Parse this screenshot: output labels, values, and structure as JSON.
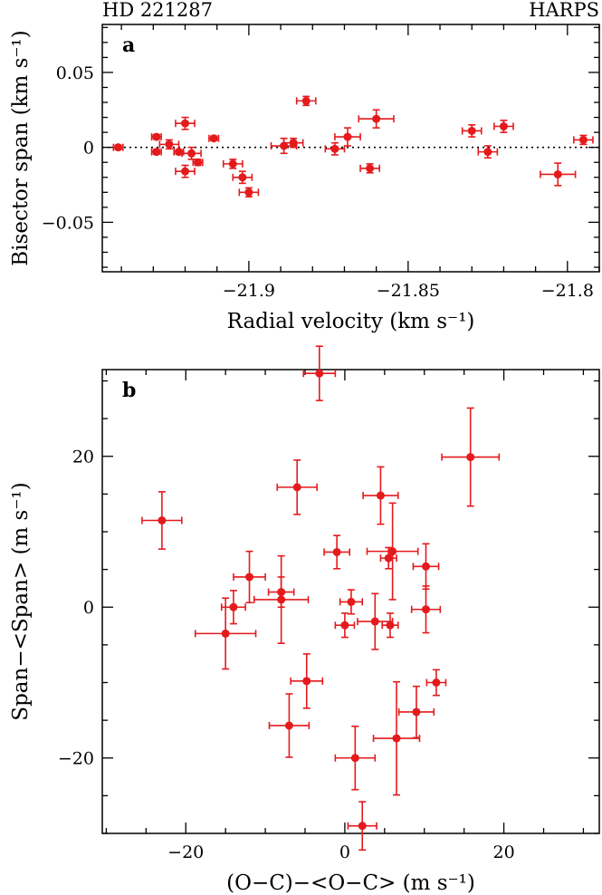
{
  "header": {
    "left": "HD 221287",
    "right": "HARPS"
  },
  "colors": {
    "data": "#e41a1c",
    "axis": "#000000"
  },
  "chart_data": [
    {
      "type": "scatter",
      "panel_label": "a",
      "xlabel": "Radial velocity (km s⁻¹)",
      "ylabel": "Bisector span (km s⁻¹)",
      "xlim": [
        -21.946,
        -21.79
      ],
      "ylim": [
        -0.083,
        0.082
      ],
      "xticks": [
        -21.9,
        -21.85,
        -21.8
      ],
      "xtick_labels": [
        "−21.9",
        "−21.85",
        "−21.8"
      ],
      "yticks": [
        -0.05,
        0,
        0.05
      ],
      "ytick_labels": [
        "−0.05",
        "0",
        "0.05"
      ],
      "reference_line": {
        "y": 0,
        "style": "dotted"
      },
      "points": [
        {
          "x": -21.941,
          "y": 0.0,
          "xerr": 0.0015,
          "yerr": 0.0015
        },
        {
          "x": -21.929,
          "y": 0.007,
          "xerr": 0.0015,
          "yerr": 0.0015
        },
        {
          "x": -21.929,
          "y": -0.003,
          "xerr": 0.0015,
          "yerr": 0.0015
        },
        {
          "x": -21.925,
          "y": 0.002,
          "xerr": 0.003,
          "yerr": 0.003
        },
        {
          "x": -21.922,
          "y": -0.003,
          "xerr": 0.0015,
          "yerr": 0.0015
        },
        {
          "x": -21.92,
          "y": 0.016,
          "xerr": 0.003,
          "yerr": 0.004
        },
        {
          "x": -21.92,
          "y": -0.016,
          "xerr": 0.003,
          "yerr": 0.004
        },
        {
          "x": -21.918,
          "y": -0.004,
          "xerr": 0.003,
          "yerr": 0.004
        },
        {
          "x": -21.916,
          "y": -0.01,
          "xerr": 0.0015,
          "yerr": 0.002
        },
        {
          "x": -21.911,
          "y": 0.006,
          "xerr": 0.0015,
          "yerr": 0.0015
        },
        {
          "x": -21.905,
          "y": -0.011,
          "xerr": 0.003,
          "yerr": 0.003
        },
        {
          "x": -21.902,
          "y": -0.02,
          "xerr": 0.003,
          "yerr": 0.004
        },
        {
          "x": -21.9,
          "y": -0.03,
          "xerr": 0.003,
          "yerr": 0.003
        },
        {
          "x": -21.889,
          "y": 0.001,
          "xerr": 0.004,
          "yerr": 0.005
        },
        {
          "x": -21.886,
          "y": 0.003,
          "xerr": 0.003,
          "yerr": 0.003
        },
        {
          "x": -21.882,
          "y": 0.031,
          "xerr": 0.003,
          "yerr": 0.003
        },
        {
          "x": -21.873,
          "y": -0.001,
          "xerr": 0.003,
          "yerr": 0.004
        },
        {
          "x": -21.869,
          "y": 0.007,
          "xerr": 0.004,
          "yerr": 0.006
        },
        {
          "x": -21.862,
          "y": -0.014,
          "xerr": 0.003,
          "yerr": 0.003
        },
        {
          "x": -21.86,
          "y": 0.019,
          "xerr": 0.0055,
          "yerr": 0.006
        },
        {
          "x": -21.83,
          "y": 0.011,
          "xerr": 0.003,
          "yerr": 0.004
        },
        {
          "x": -21.825,
          "y": -0.003,
          "xerr": 0.003,
          "yerr": 0.004
        },
        {
          "x": -21.82,
          "y": 0.014,
          "xerr": 0.003,
          "yerr": 0.004
        },
        {
          "x": -21.803,
          "y": -0.018,
          "xerr": 0.0055,
          "yerr": 0.0075
        },
        {
          "x": -21.795,
          "y": 0.005,
          "xerr": 0.003,
          "yerr": 0.003
        }
      ]
    },
    {
      "type": "scatter",
      "panel_label": "b",
      "xlabel": "(O−C)−<O−C> (m s⁻¹)",
      "ylabel": "Span−<Span> (m s⁻¹)",
      "xlim": [
        -30.5,
        32
      ],
      "ylim": [
        -30,
        31.5
      ],
      "xticks": [
        -20,
        0,
        20
      ],
      "xtick_labels": [
        "−20",
        "0",
        "20"
      ],
      "yticks": [
        -20,
        0,
        20
      ],
      "ytick_labels": [
        "−20",
        "0",
        "20"
      ],
      "points": [
        {
          "x": -23.0,
          "y": 11.5,
          "xerr": 2.5,
          "yerr": 3.8
        },
        {
          "x": -15.0,
          "y": -3.5,
          "xerr": 3.8,
          "yerr": 4.7
        },
        {
          "x": -14.0,
          "y": 0.0,
          "xerr": 1.5,
          "yerr": 2.2
        },
        {
          "x": -12.0,
          "y": 4.0,
          "xerr": 2.0,
          "yerr": 3.4
        },
        {
          "x": -8.0,
          "y": 1.0,
          "xerr": 3.4,
          "yerr": 5.8
        },
        {
          "x": -8.0,
          "y": 2.0,
          "xerr": 1.6,
          "yerr": 2.0
        },
        {
          "x": -7.0,
          "y": -15.7,
          "xerr": 2.5,
          "yerr": 4.2
        },
        {
          "x": -6.0,
          "y": 15.9,
          "xerr": 2.5,
          "yerr": 3.6
        },
        {
          "x": -4.8,
          "y": -9.8,
          "xerr": 2.0,
          "yerr": 3.6
        },
        {
          "x": -3.2,
          "y": 31.0,
          "xerr": 2.0,
          "yerr": 3.6
        },
        {
          "x": -1.0,
          "y": 7.3,
          "xerr": 1.6,
          "yerr": 2.2
        },
        {
          "x": 0.0,
          "y": -2.4,
          "xerr": 1.2,
          "yerr": 1.6
        },
        {
          "x": 0.8,
          "y": 0.7,
          "xerr": 1.4,
          "yerr": 1.6
        },
        {
          "x": 1.3,
          "y": -20.0,
          "xerr": 2.5,
          "yerr": 4.2
        },
        {
          "x": 2.2,
          "y": -29.0,
          "xerr": 1.8,
          "yerr": 3.2
        },
        {
          "x": 3.8,
          "y": -1.9,
          "xerr": 2.2,
          "yerr": 3.7
        },
        {
          "x": 4.5,
          "y": 14.8,
          "xerr": 2.2,
          "yerr": 3.8
        },
        {
          "x": 5.5,
          "y": 6.5,
          "xerr": 1.0,
          "yerr": 1.4
        },
        {
          "x": 5.7,
          "y": -2.4,
          "xerr": 1.0,
          "yerr": 1.6
        },
        {
          "x": 6.0,
          "y": 7.4,
          "xerr": 3.2,
          "yerr": 6.4
        },
        {
          "x": 6.5,
          "y": -17.4,
          "xerr": 2.9,
          "yerr": 7.5
        },
        {
          "x": 9.0,
          "y": -13.9,
          "xerr": 2.2,
          "yerr": 3.4
        },
        {
          "x": 10.2,
          "y": 5.4,
          "xerr": 1.6,
          "yerr": 3.0
        },
        {
          "x": 10.2,
          "y": -0.3,
          "xerr": 1.8,
          "yerr": 3.1
        },
        {
          "x": 11.5,
          "y": -10.0,
          "xerr": 1.2,
          "yerr": 1.7
        },
        {
          "x": 15.8,
          "y": 19.9,
          "xerr": 3.6,
          "yerr": 6.5
        }
      ]
    }
  ]
}
